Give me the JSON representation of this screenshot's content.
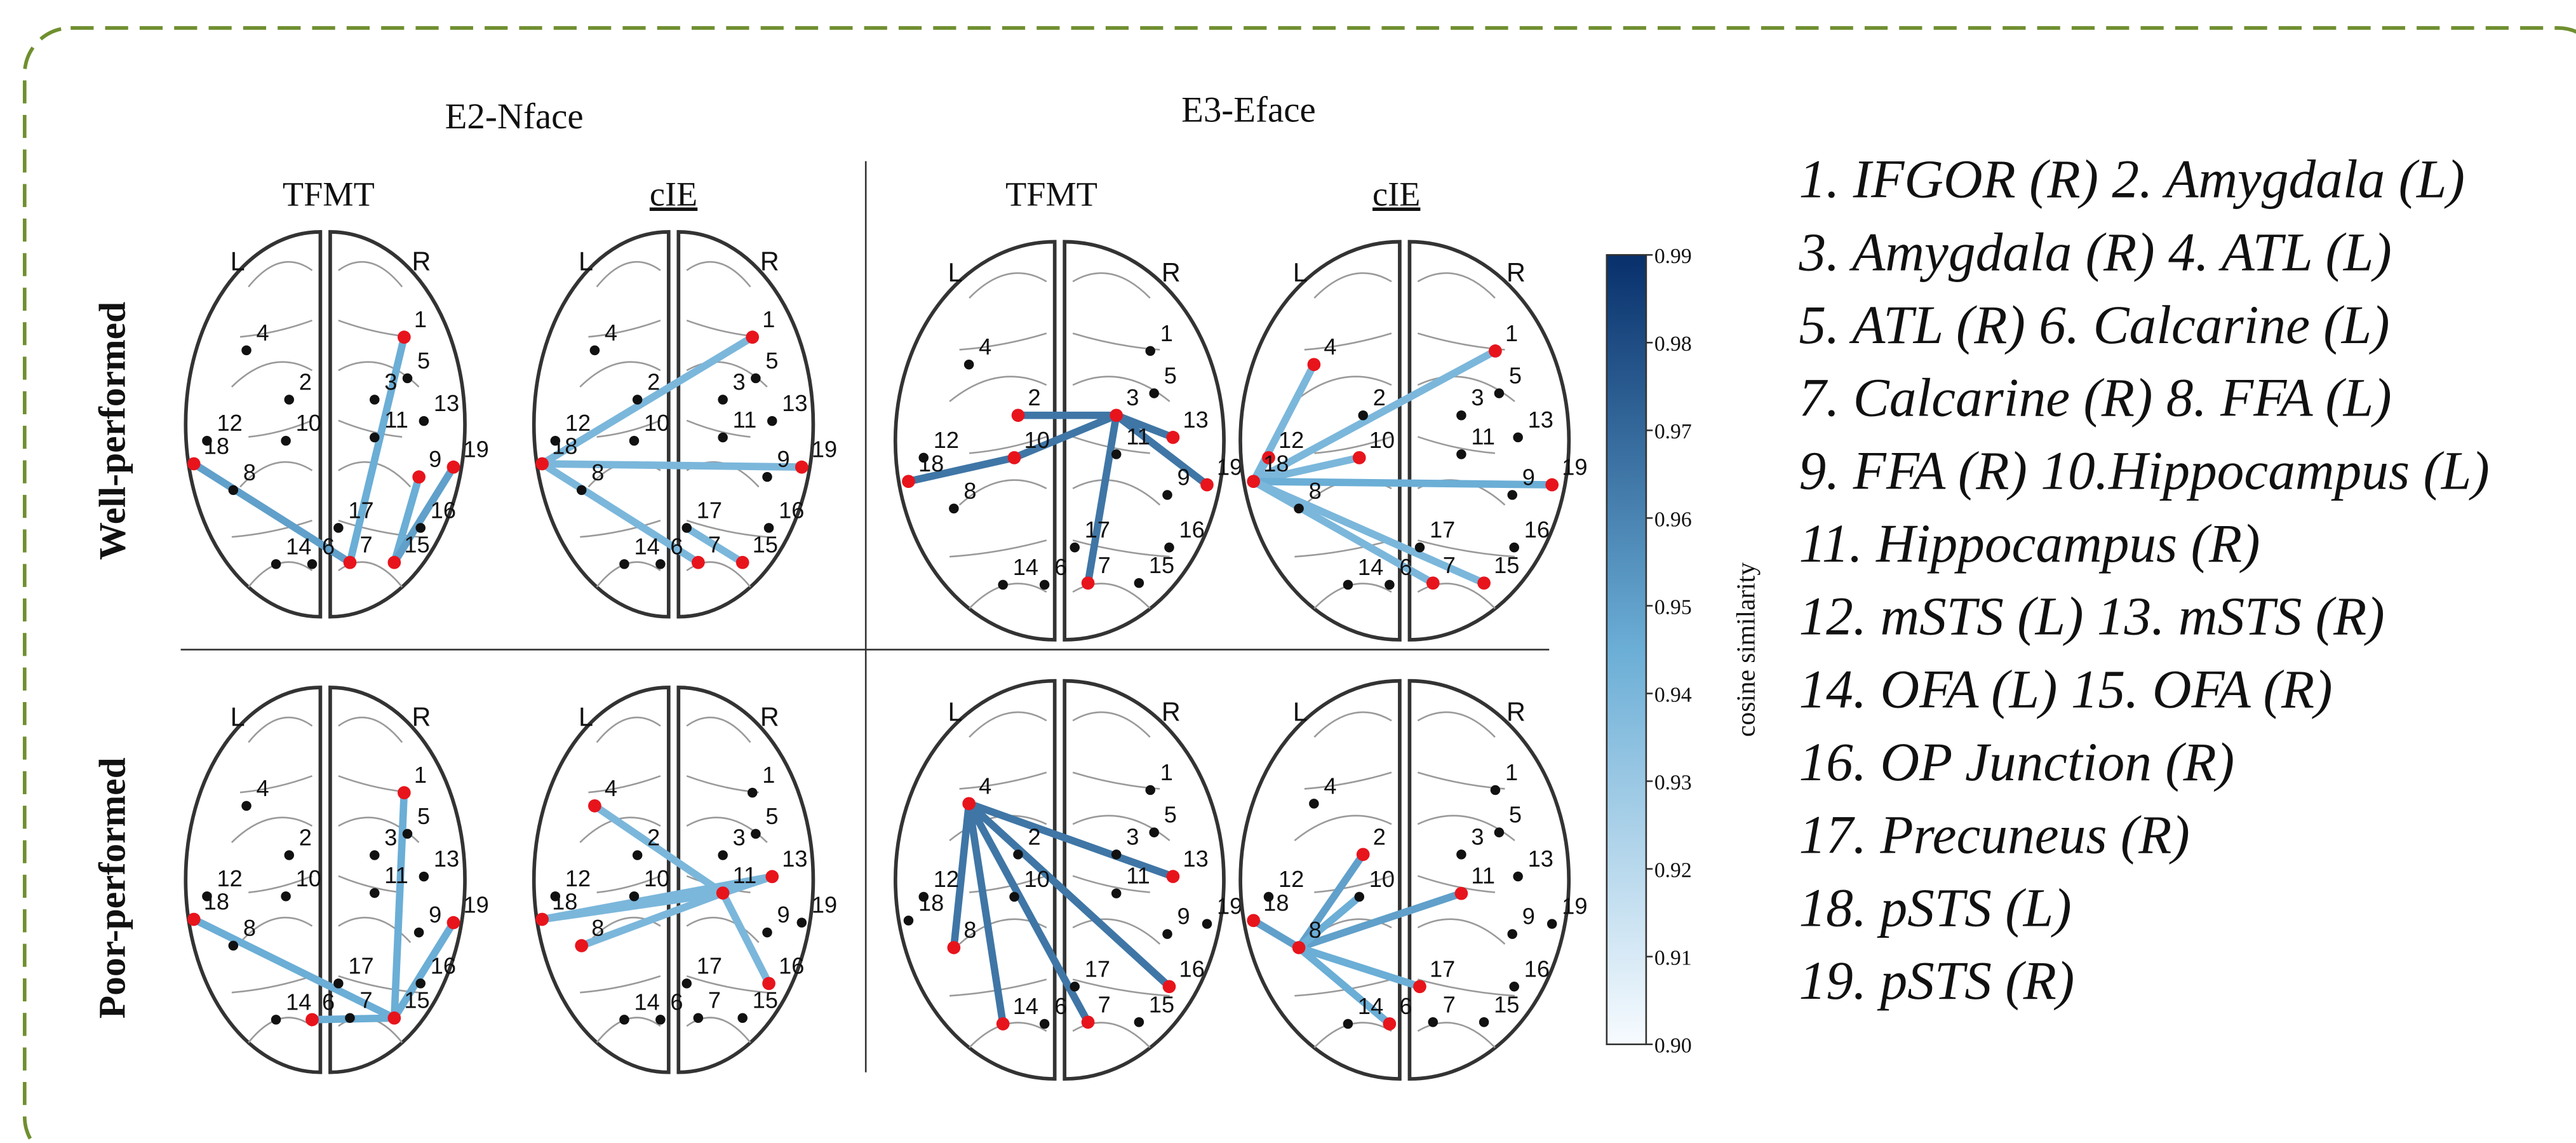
{
  "headers": [
    {
      "title": "E2-Nface",
      "columns": [
        "TFMT",
        "cIE"
      ]
    },
    {
      "title": "E3-Eface",
      "columns": [
        "TFMT",
        "cIE"
      ]
    }
  ],
  "rows": [
    "Well-performed",
    "Poor-performed"
  ],
  "hemisphere_labels": [
    "L",
    "R"
  ],
  "node_labels": [
    "1",
    "2",
    "3",
    "4",
    "5",
    "6",
    "7",
    "8",
    "9",
    "10",
    "11",
    "12",
    "13",
    "14",
    "15",
    "16",
    "17",
    "18",
    "19"
  ],
  "brains": [
    {
      "red_nodes": [
        1,
        18,
        9,
        19,
        7,
        15
      ],
      "edges": [
        {
          "from": 1,
          "to": 7,
          "value": 0.945
        },
        {
          "from": 18,
          "to": 7,
          "value": 0.95
        },
        {
          "from": 9,
          "to": 15,
          "value": 0.945
        },
        {
          "from": 19,
          "to": 15,
          "value": 0.95
        }
      ]
    },
    {
      "red_nodes": [
        1,
        18,
        19,
        7,
        15
      ],
      "edges": [
        {
          "from": 18,
          "to": 1,
          "value": 0.94
        },
        {
          "from": 18,
          "to": 19,
          "value": 0.94
        },
        {
          "from": 18,
          "to": 7,
          "value": 0.94
        },
        {
          "from": 17,
          "to": 15,
          "value": 0.94
        }
      ]
    },
    {
      "red_nodes": [
        2,
        3,
        13,
        10,
        18,
        19,
        7
      ],
      "edges": [
        {
          "from": 3,
          "to": 2,
          "value": 0.965
        },
        {
          "from": 3,
          "to": 10,
          "value": 0.965
        },
        {
          "from": 10,
          "to": 18,
          "value": 0.965
        },
        {
          "from": 3,
          "to": 7,
          "value": 0.965
        },
        {
          "from": 3,
          "to": 19,
          "value": 0.965
        },
        {
          "from": 3,
          "to": 13,
          "value": 0.965
        }
      ]
    },
    {
      "red_nodes": [
        1,
        4,
        12,
        18,
        10,
        19,
        15,
        7
      ],
      "edges": [
        {
          "from": 18,
          "to": 1,
          "value": 0.94
        },
        {
          "from": 18,
          "to": 4,
          "value": 0.94
        },
        {
          "from": 18,
          "to": 12,
          "value": 0.94
        },
        {
          "from": 18,
          "to": 10,
          "value": 0.94
        },
        {
          "from": 18,
          "to": 19,
          "value": 0.945
        },
        {
          "from": 18,
          "to": 15,
          "value": 0.94
        },
        {
          "from": 18,
          "to": 7,
          "value": 0.94
        }
      ]
    },
    {
      "red_nodes": [
        1,
        18,
        19,
        15,
        6
      ],
      "edges": [
        {
          "from": 1,
          "to": 15,
          "value": 0.945
        },
        {
          "from": 18,
          "to": 15,
          "value": 0.945
        },
        {
          "from": 19,
          "to": 15,
          "value": 0.945
        },
        {
          "from": 6,
          "to": 15,
          "value": 0.945
        }
      ]
    },
    {
      "red_nodes": [
        4,
        11,
        13,
        18,
        8,
        16
      ],
      "edges": [
        {
          "from": 4,
          "to": 11,
          "value": 0.94
        },
        {
          "from": 11,
          "to": 13,
          "value": 0.94
        },
        {
          "from": 18,
          "to": 11,
          "value": 0.94
        },
        {
          "from": 8,
          "to": 11,
          "value": 0.94
        },
        {
          "from": 11,
          "to": 16,
          "value": 0.94
        },
        {
          "from": 18,
          "to": 13,
          "value": 0.94
        }
      ]
    },
    {
      "red_nodes": [
        4,
        13,
        8,
        14,
        7,
        16
      ],
      "edges": [
        {
          "from": 4,
          "to": 13,
          "value": 0.965
        },
        {
          "from": 4,
          "to": 16,
          "value": 0.965
        },
        {
          "from": 4,
          "to": 7,
          "value": 0.965
        },
        {
          "from": 4,
          "to": 14,
          "value": 0.965
        },
        {
          "from": 4,
          "to": 8,
          "value": 0.965
        }
      ]
    },
    {
      "red_nodes": [
        2,
        11,
        18,
        8,
        17,
        6
      ],
      "edges": [
        {
          "from": 2,
          "to": 8,
          "value": 0.95
        },
        {
          "from": 18,
          "to": 8,
          "value": 0.95
        },
        {
          "from": 8,
          "to": 11,
          "value": 0.95
        },
        {
          "from": 8,
          "to": 17,
          "value": 0.945
        },
        {
          "from": 8,
          "to": 6,
          "value": 0.945
        },
        {
          "from": 10,
          "to": 8,
          "value": 0.945
        }
      ]
    }
  ],
  "colorbar": {
    "label": "cosine similarity",
    "lim": [
      0.9,
      0.99
    ],
    "ticks": [
      {
        "value": 0.9,
        "label": "0.90"
      },
      0.91,
      0.92,
      0.93,
      0.94,
      0.95,
      0.96,
      0.97,
      0.98,
      0.99
    ],
    "colors": [
      "#f7fbff",
      "#6baed6",
      "#08306b"
    ]
  },
  "legend": [
    "1. IFGOR (R)  2. Amygdala (L)",
    "3. Amygdala (R)  4. ATL (L)",
    "5. ATL (R)  6. Calcarine (L)",
    "7. Calcarine (R)  8. FFA (L)",
    "9. FFA (R)  10.Hippocampus (L)",
    "11. Hippocampus (R)",
    "12. mSTS (L)  13. mSTS (R)",
    "14. OFA (L)  15. OFA (R)",
    "16. OP Junction (R)",
    "17. Precuneus (R)",
    "18. pSTS (L)",
    "19. pSTS (R)"
  ]
}
